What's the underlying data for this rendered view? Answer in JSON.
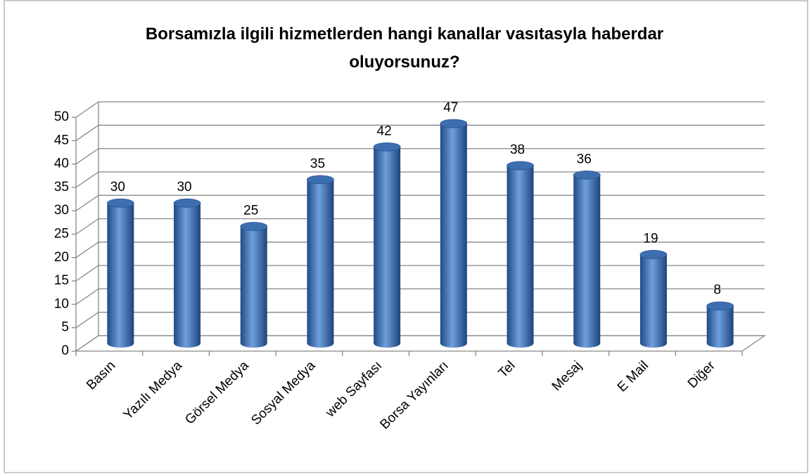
{
  "chart_data": {
    "type": "bar3d",
    "title": [
      "Borsamızla ilgili hizmetlerden hangi kanallar vasıtasyla haberdar",
      "oluyorsunuz?"
    ],
    "categories": [
      "Basın",
      "Yazılı Medya",
      "Görsel Medya",
      "Sosyal Medya",
      "web Sayfası",
      "Borsa Yayınları",
      "Tel",
      "Mesaj",
      "E Mail",
      "Diğer"
    ],
    "values": [
      30,
      30,
      25,
      35,
      42,
      47,
      38,
      36,
      19,
      8
    ],
    "color": "#4a7ebb",
    "ylim": [
      0,
      50
    ],
    "yticks": [
      0,
      5,
      10,
      15,
      20,
      25,
      30,
      35,
      40,
      45,
      50
    ],
    "grid": true
  }
}
